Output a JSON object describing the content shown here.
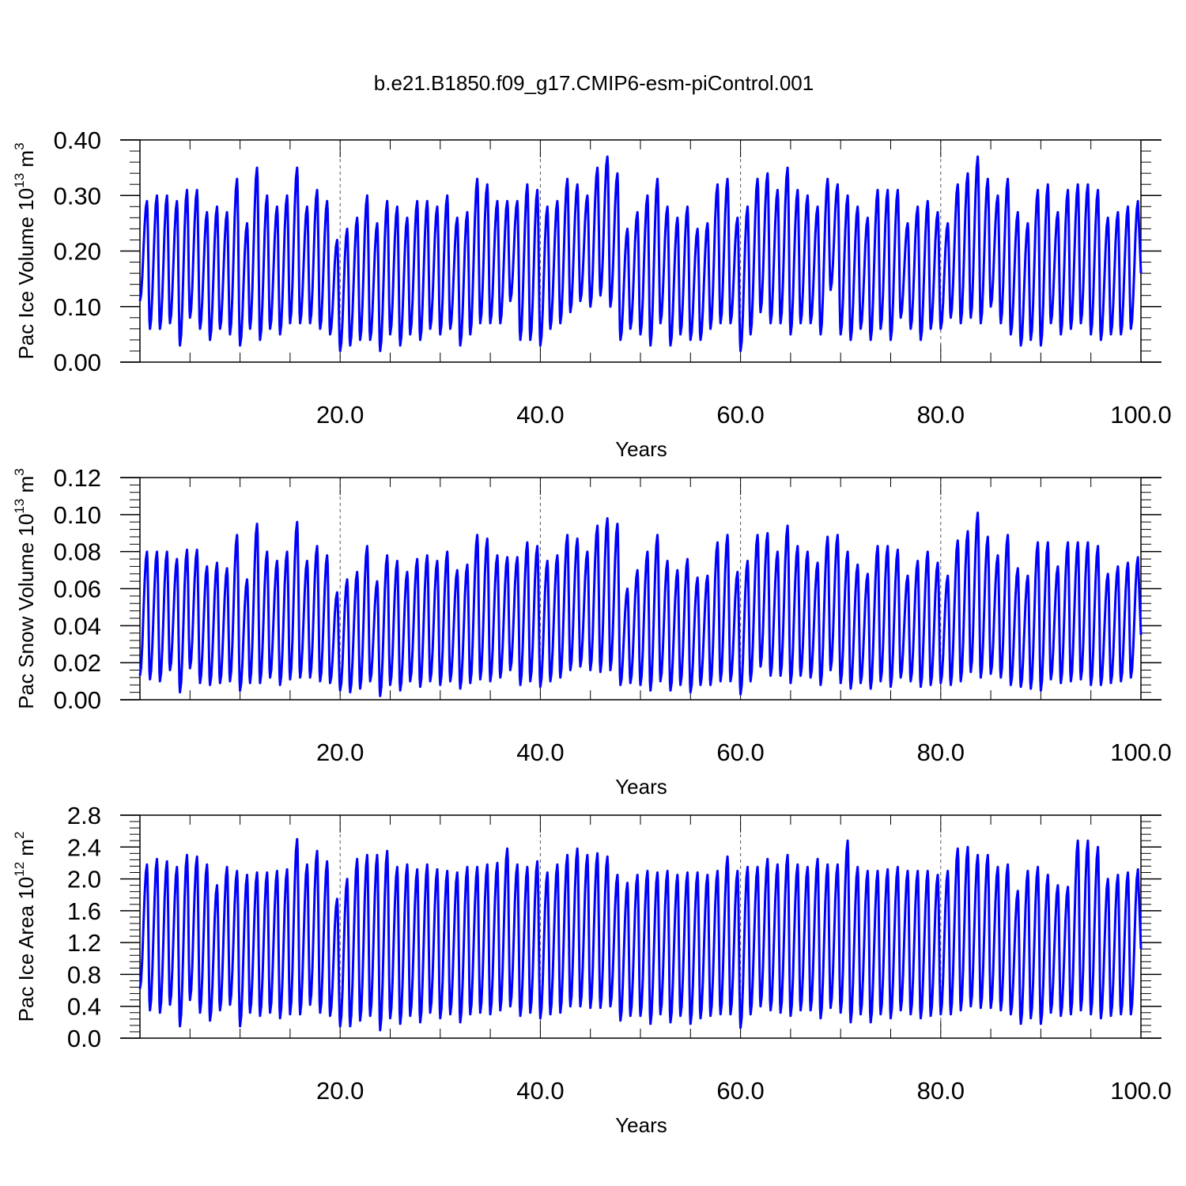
{
  "title": "b.e21.B1850.f09_g17.CMIP6-esm-piControl.001",
  "colors": {
    "series": "#0000ff",
    "axis": "#000000",
    "grid": "#555555"
  },
  "chart_data": [
    {
      "type": "line",
      "xlabel": "Years",
      "ylabel": {
        "main": "Pac Ice Volume 10",
        "sup": "13",
        "mid": " m",
        "sup2": "3"
      },
      "xlim": [
        0,
        100
      ],
      "ylim": [
        0.0,
        0.4
      ],
      "xticks": [
        20.0,
        40.0,
        60.0,
        80.0,
        100.0
      ],
      "xtick_labels": [
        "20.0",
        "40.0",
        "60.0",
        "80.0",
        "100.0"
      ],
      "yticks": [
        0.0,
        0.1,
        0.2,
        0.3,
        0.4
      ],
      "ytick_labels": [
        "0.00",
        "0.10",
        "0.20",
        "0.30",
        "0.40"
      ],
      "vgrid_dashed": [
        20,
        40,
        60,
        80
      ],
      "peak_years": [
        0.7,
        1.7,
        2.7,
        3.7,
        4.7,
        5.7,
        6.7,
        7.7,
        8.7,
        9.7,
        10.7,
        11.7,
        12.7,
        13.7,
        14.7,
        15.7,
        16.7,
        17.7,
        18.7,
        19.7,
        20.7,
        21.7,
        22.7,
        23.7,
        24.7,
        25.7,
        26.7,
        27.7,
        28.7,
        29.7,
        30.7,
        31.7,
        32.7,
        33.7,
        34.7,
        35.7,
        36.7,
        37.7,
        38.7,
        39.7,
        40.7,
        41.7,
        42.7,
        43.7,
        44.7,
        45.7,
        46.7,
        47.7,
        48.7,
        49.7,
        50.7,
        51.7,
        52.7,
        53.7,
        54.7,
        55.7,
        56.7,
        57.7,
        58.7,
        59.7,
        60.7,
        61.7,
        62.7,
        63.7,
        64.7,
        65.7,
        66.7,
        67.7,
        68.7,
        69.7,
        70.7,
        71.7,
        72.7,
        73.7,
        74.7,
        75.7,
        76.7,
        77.7,
        78.7,
        79.7,
        80.7,
        81.7,
        82.7,
        83.7,
        84.7,
        85.7,
        86.7,
        87.7,
        88.7,
        89.7,
        90.7,
        91.7,
        92.7,
        93.7,
        94.7,
        95.7,
        96.7,
        97.7,
        98.7,
        99.7
      ],
      "peaks": [
        0.29,
        0.3,
        0.3,
        0.29,
        0.31,
        0.31,
        0.27,
        0.28,
        0.27,
        0.33,
        0.25,
        0.35,
        0.3,
        0.28,
        0.3,
        0.35,
        0.28,
        0.31,
        0.29,
        0.22,
        0.24,
        0.26,
        0.3,
        0.25,
        0.29,
        0.28,
        0.26,
        0.29,
        0.29,
        0.28,
        0.3,
        0.26,
        0.27,
        0.33,
        0.32,
        0.29,
        0.29,
        0.29,
        0.32,
        0.31,
        0.28,
        0.29,
        0.33,
        0.32,
        0.3,
        0.35,
        0.37,
        0.34,
        0.24,
        0.27,
        0.3,
        0.33,
        0.28,
        0.26,
        0.28,
        0.24,
        0.25,
        0.32,
        0.33,
        0.26,
        0.28,
        0.33,
        0.34,
        0.31,
        0.35,
        0.31,
        0.3,
        0.28,
        0.33,
        0.32,
        0.3,
        0.28,
        0.26,
        0.31,
        0.31,
        0.31,
        0.25,
        0.28,
        0.29,
        0.27,
        0.25,
        0.32,
        0.34,
        0.37,
        0.33,
        0.3,
        0.33,
        0.27,
        0.25,
        0.31,
        0.32,
        0.27,
        0.31,
        0.32,
        0.32,
        0.31,
        0.26,
        0.27,
        0.28,
        0.29
      ],
      "troughs": [
        0.06,
        0.06,
        0.07,
        0.03,
        0.08,
        0.06,
        0.04,
        0.06,
        0.05,
        0.03,
        0.06,
        0.04,
        0.06,
        0.05,
        0.07,
        0.07,
        0.07,
        0.06,
        0.05,
        0.02,
        0.03,
        0.04,
        0.04,
        0.02,
        0.05,
        0.03,
        0.05,
        0.04,
        0.06,
        0.05,
        0.06,
        0.03,
        0.05,
        0.07,
        0.07,
        0.07,
        0.11,
        0.04,
        0.04,
        0.03,
        0.06,
        0.07,
        0.09,
        0.11,
        0.1,
        0.12,
        0.1,
        0.04,
        0.06,
        0.05,
        0.03,
        0.07,
        0.03,
        0.05,
        0.04,
        0.04,
        0.06,
        0.07,
        0.07,
        0.02,
        0.05,
        0.09,
        0.07,
        0.07,
        0.05,
        0.07,
        0.07,
        0.05,
        0.13,
        0.05,
        0.04,
        0.06,
        0.04,
        0.06,
        0.04,
        0.08,
        0.06,
        0.04,
        0.06,
        0.06,
        0.08,
        0.07,
        0.08,
        0.07,
        0.1,
        0.07,
        0.05,
        0.03,
        0.04,
        0.03,
        0.07,
        0.05,
        0.06,
        0.07,
        0.05,
        0.04,
        0.05,
        0.05,
        0.06,
        0.07
      ],
      "start_value": 0.11,
      "end_value": 0.16
    },
    {
      "type": "line",
      "xlabel": "Years",
      "ylabel": {
        "main": "Pac Snow Volume 10",
        "sup": "13",
        "mid": " m",
        "sup2": "3"
      },
      "xlim": [
        0,
        100
      ],
      "ylim": [
        0.0,
        0.12
      ],
      "xticks": [
        20.0,
        40.0,
        60.0,
        80.0,
        100.0
      ],
      "xtick_labels": [
        "20.0",
        "40.0",
        "60.0",
        "80.0",
        "100.0"
      ],
      "yticks": [
        0.0,
        0.02,
        0.04,
        0.06,
        0.08,
        0.1,
        0.12
      ],
      "ytick_labels": [
        "0.00",
        "0.02",
        "0.04",
        "0.06",
        "0.08",
        "0.10",
        "0.12"
      ],
      "vgrid_dashed": [
        20,
        40,
        60,
        80
      ],
      "peak_years": [
        0.7,
        1.7,
        2.7,
        3.7,
        4.7,
        5.7,
        6.7,
        7.7,
        8.7,
        9.7,
        10.7,
        11.7,
        12.7,
        13.7,
        14.7,
        15.7,
        16.7,
        17.7,
        18.7,
        19.7,
        20.7,
        21.7,
        22.7,
        23.7,
        24.7,
        25.7,
        26.7,
        27.7,
        28.7,
        29.7,
        30.7,
        31.7,
        32.7,
        33.7,
        34.7,
        35.7,
        36.7,
        37.7,
        38.7,
        39.7,
        40.7,
        41.7,
        42.7,
        43.7,
        44.7,
        45.7,
        46.7,
        47.7,
        48.7,
        49.7,
        50.7,
        51.7,
        52.7,
        53.7,
        54.7,
        55.7,
        56.7,
        57.7,
        58.7,
        59.7,
        60.7,
        61.7,
        62.7,
        63.7,
        64.7,
        65.7,
        66.7,
        67.7,
        68.7,
        69.7,
        70.7,
        71.7,
        72.7,
        73.7,
        74.7,
        75.7,
        76.7,
        77.7,
        78.7,
        79.7,
        80.7,
        81.7,
        82.7,
        83.7,
        84.7,
        85.7,
        86.7,
        87.7,
        88.7,
        89.7,
        90.7,
        91.7,
        92.7,
        93.7,
        94.7,
        95.7,
        96.7,
        97.7,
        98.7,
        99.7
      ],
      "peaks": [
        0.08,
        0.08,
        0.08,
        0.076,
        0.081,
        0.081,
        0.072,
        0.074,
        0.071,
        0.089,
        0.065,
        0.095,
        0.08,
        0.075,
        0.08,
        0.096,
        0.075,
        0.083,
        0.078,
        0.058,
        0.065,
        0.069,
        0.083,
        0.064,
        0.078,
        0.075,
        0.069,
        0.076,
        0.078,
        0.075,
        0.08,
        0.07,
        0.073,
        0.089,
        0.087,
        0.078,
        0.077,
        0.077,
        0.085,
        0.083,
        0.075,
        0.078,
        0.089,
        0.087,
        0.08,
        0.094,
        0.098,
        0.095,
        0.06,
        0.07,
        0.08,
        0.089,
        0.075,
        0.07,
        0.076,
        0.066,
        0.067,
        0.085,
        0.089,
        0.069,
        0.075,
        0.089,
        0.09,
        0.08,
        0.094,
        0.083,
        0.08,
        0.074,
        0.088,
        0.089,
        0.08,
        0.073,
        0.068,
        0.083,
        0.083,
        0.081,
        0.067,
        0.075,
        0.08,
        0.074,
        0.067,
        0.086,
        0.091,
        0.101,
        0.088,
        0.078,
        0.089,
        0.071,
        0.067,
        0.085,
        0.085,
        0.072,
        0.085,
        0.085,
        0.085,
        0.083,
        0.068,
        0.072,
        0.074,
        0.077
      ],
      "troughs": [
        0.011,
        0.01,
        0.016,
        0.004,
        0.017,
        0.009,
        0.008,
        0.009,
        0.01,
        0.005,
        0.009,
        0.009,
        0.012,
        0.008,
        0.011,
        0.012,
        0.012,
        0.01,
        0.009,
        0.005,
        0.004,
        0.006,
        0.01,
        0.002,
        0.008,
        0.005,
        0.01,
        0.007,
        0.01,
        0.008,
        0.01,
        0.006,
        0.009,
        0.011,
        0.01,
        0.012,
        0.016,
        0.008,
        0.01,
        0.007,
        0.01,
        0.012,
        0.016,
        0.018,
        0.016,
        0.015,
        0.016,
        0.008,
        0.009,
        0.008,
        0.005,
        0.01,
        0.005,
        0.008,
        0.004,
        0.008,
        0.008,
        0.01,
        0.01,
        0.003,
        0.01,
        0.018,
        0.013,
        0.013,
        0.009,
        0.013,
        0.012,
        0.008,
        0.016,
        0.009,
        0.006,
        0.009,
        0.006,
        0.01,
        0.007,
        0.012,
        0.01,
        0.007,
        0.008,
        0.009,
        0.008,
        0.01,
        0.015,
        0.012,
        0.014,
        0.012,
        0.008,
        0.007,
        0.006,
        0.005,
        0.011,
        0.009,
        0.01,
        0.011,
        0.008,
        0.008,
        0.009,
        0.01,
        0.012,
        0.014
      ],
      "start_value": 0.013,
      "end_value": 0.035
    },
    {
      "type": "line",
      "xlabel": "Years",
      "ylabel": {
        "main": "Pac Ice Area 10",
        "sup": "12",
        "mid": " m",
        "sup2": "2"
      },
      "xlim": [
        0,
        100
      ],
      "ylim": [
        0.0,
        2.8
      ],
      "xticks": [
        20.0,
        40.0,
        60.0,
        80.0,
        100.0
      ],
      "xtick_labels": [
        "20.0",
        "40.0",
        "60.0",
        "80.0",
        "100.0"
      ],
      "yticks": [
        0.0,
        0.4,
        0.8,
        1.2,
        1.6,
        2.0,
        2.4,
        2.8
      ],
      "ytick_labels": [
        "0.0",
        "0.4",
        "0.8",
        "1.2",
        "1.6",
        "2.0",
        "2.4",
        "2.8"
      ],
      "vgrid_dashed": [
        20,
        40,
        60,
        80
      ],
      "peak_years": [
        0.7,
        1.7,
        2.7,
        3.7,
        4.7,
        5.7,
        6.7,
        7.7,
        8.7,
        9.7,
        10.7,
        11.7,
        12.7,
        13.7,
        14.7,
        15.7,
        16.7,
        17.7,
        18.7,
        19.7,
        20.7,
        21.7,
        22.7,
        23.7,
        24.7,
        25.7,
        26.7,
        27.7,
        28.7,
        29.7,
        30.7,
        31.7,
        32.7,
        33.7,
        34.7,
        35.7,
        36.7,
        37.7,
        38.7,
        39.7,
        40.7,
        41.7,
        42.7,
        43.7,
        44.7,
        45.7,
        46.7,
        47.7,
        48.7,
        49.7,
        50.7,
        51.7,
        52.7,
        53.7,
        54.7,
        55.7,
        56.7,
        57.7,
        58.7,
        59.7,
        60.7,
        61.7,
        62.7,
        63.7,
        64.7,
        65.7,
        66.7,
        67.7,
        68.7,
        69.7,
        70.7,
        71.7,
        72.7,
        73.7,
        74.7,
        75.7,
        76.7,
        77.7,
        78.7,
        79.7,
        80.7,
        81.7,
        82.7,
        83.7,
        84.7,
        85.7,
        86.7,
        87.7,
        88.7,
        89.7,
        90.7,
        91.7,
        92.7,
        93.7,
        94.7,
        95.7,
        96.7,
        97.7,
        98.7,
        99.7
      ],
      "peaks": [
        2.18,
        2.25,
        2.22,
        2.15,
        2.3,
        2.28,
        2.18,
        1.92,
        2.15,
        2.1,
        2.05,
        2.08,
        2.08,
        2.1,
        2.12,
        2.5,
        2.18,
        2.35,
        2.22,
        1.75,
        2.0,
        2.25,
        2.3,
        2.3,
        2.35,
        2.15,
        2.18,
        2.12,
        2.18,
        2.12,
        2.1,
        2.08,
        2.15,
        2.15,
        2.18,
        2.2,
        2.38,
        2.18,
        2.15,
        2.22,
        2.08,
        2.18,
        2.3,
        2.38,
        2.3,
        2.32,
        2.28,
        2.05,
        1.95,
        2.05,
        2.1,
        2.08,
        2.1,
        2.05,
        2.08,
        2.08,
        2.05,
        2.1,
        2.28,
        2.1,
        2.15,
        2.15,
        2.25,
        2.18,
        2.3,
        2.18,
        2.15,
        2.25,
        2.18,
        2.18,
        2.48,
        2.15,
        2.1,
        2.1,
        2.12,
        2.15,
        2.1,
        2.1,
        2.1,
        2.05,
        2.1,
        2.38,
        2.4,
        2.3,
        2.3,
        2.15,
        2.18,
        1.85,
        2.1,
        2.15,
        2.05,
        1.92,
        1.9,
        2.48,
        2.48,
        2.4,
        2.0,
        2.05,
        2.08,
        2.12
      ],
      "troughs": [
        0.35,
        0.32,
        0.42,
        0.15,
        0.48,
        0.32,
        0.22,
        0.35,
        0.42,
        0.15,
        0.32,
        0.28,
        0.32,
        0.25,
        0.3,
        0.3,
        0.42,
        0.32,
        0.28,
        0.15,
        0.15,
        0.22,
        0.28,
        0.1,
        0.25,
        0.18,
        0.28,
        0.2,
        0.32,
        0.25,
        0.3,
        0.2,
        0.3,
        0.32,
        0.3,
        0.35,
        0.4,
        0.28,
        0.32,
        0.25,
        0.3,
        0.32,
        0.4,
        0.4,
        0.38,
        0.38,
        0.4,
        0.22,
        0.28,
        0.28,
        0.18,
        0.3,
        0.2,
        0.28,
        0.18,
        0.25,
        0.28,
        0.3,
        0.3,
        0.13,
        0.3,
        0.4,
        0.35,
        0.32,
        0.28,
        0.35,
        0.35,
        0.25,
        0.38,
        0.32,
        0.2,
        0.3,
        0.2,
        0.3,
        0.25,
        0.35,
        0.3,
        0.25,
        0.28,
        0.3,
        0.3,
        0.35,
        0.4,
        0.38,
        0.38,
        0.35,
        0.3,
        0.18,
        0.25,
        0.18,
        0.32,
        0.28,
        0.3,
        0.35,
        0.3,
        0.25,
        0.28,
        0.3,
        0.3,
        0.38
      ],
      "start_value": 0.62,
      "end_value": 1.12
    }
  ]
}
